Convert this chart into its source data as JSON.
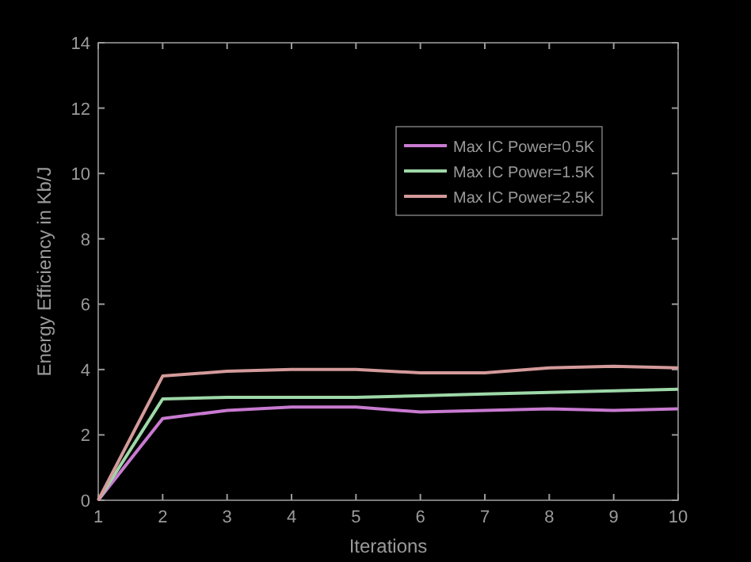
{
  "chart_data": {
    "type": "line",
    "xlabel": "Iterations",
    "ylabel": "Energy Efficiency in Kb/J",
    "x": [
      1,
      2,
      3,
      4,
      5,
      6,
      7,
      8,
      9,
      10
    ],
    "series": [
      {
        "name": "Max IC Power=0.5K",
        "color": "#c87ad0",
        "values": [
          0,
          2.5,
          2.75,
          2.85,
          2.85,
          2.7,
          2.75,
          2.8,
          2.75,
          2.8
        ]
      },
      {
        "name": "Max IC Power=1.5K",
        "color": "#9ed8a8",
        "values": [
          0,
          3.1,
          3.15,
          3.15,
          3.15,
          3.2,
          3.25,
          3.3,
          3.35,
          3.4
        ]
      },
      {
        "name": "Max IC Power=2.5K",
        "color": "#d49a9a",
        "values": [
          0,
          3.8,
          3.95,
          4.0,
          4.0,
          3.9,
          3.9,
          4.05,
          4.1,
          4.05
        ]
      }
    ],
    "xlim": [
      1,
      10
    ],
    "xticks": [
      1,
      2,
      3,
      4,
      5,
      6,
      7,
      8,
      9,
      10
    ],
    "ylim": [
      0,
      14
    ],
    "yticks": [
      0,
      2,
      4,
      6,
      8,
      10,
      12,
      14
    ],
    "grid": false,
    "legend": "top right"
  }
}
